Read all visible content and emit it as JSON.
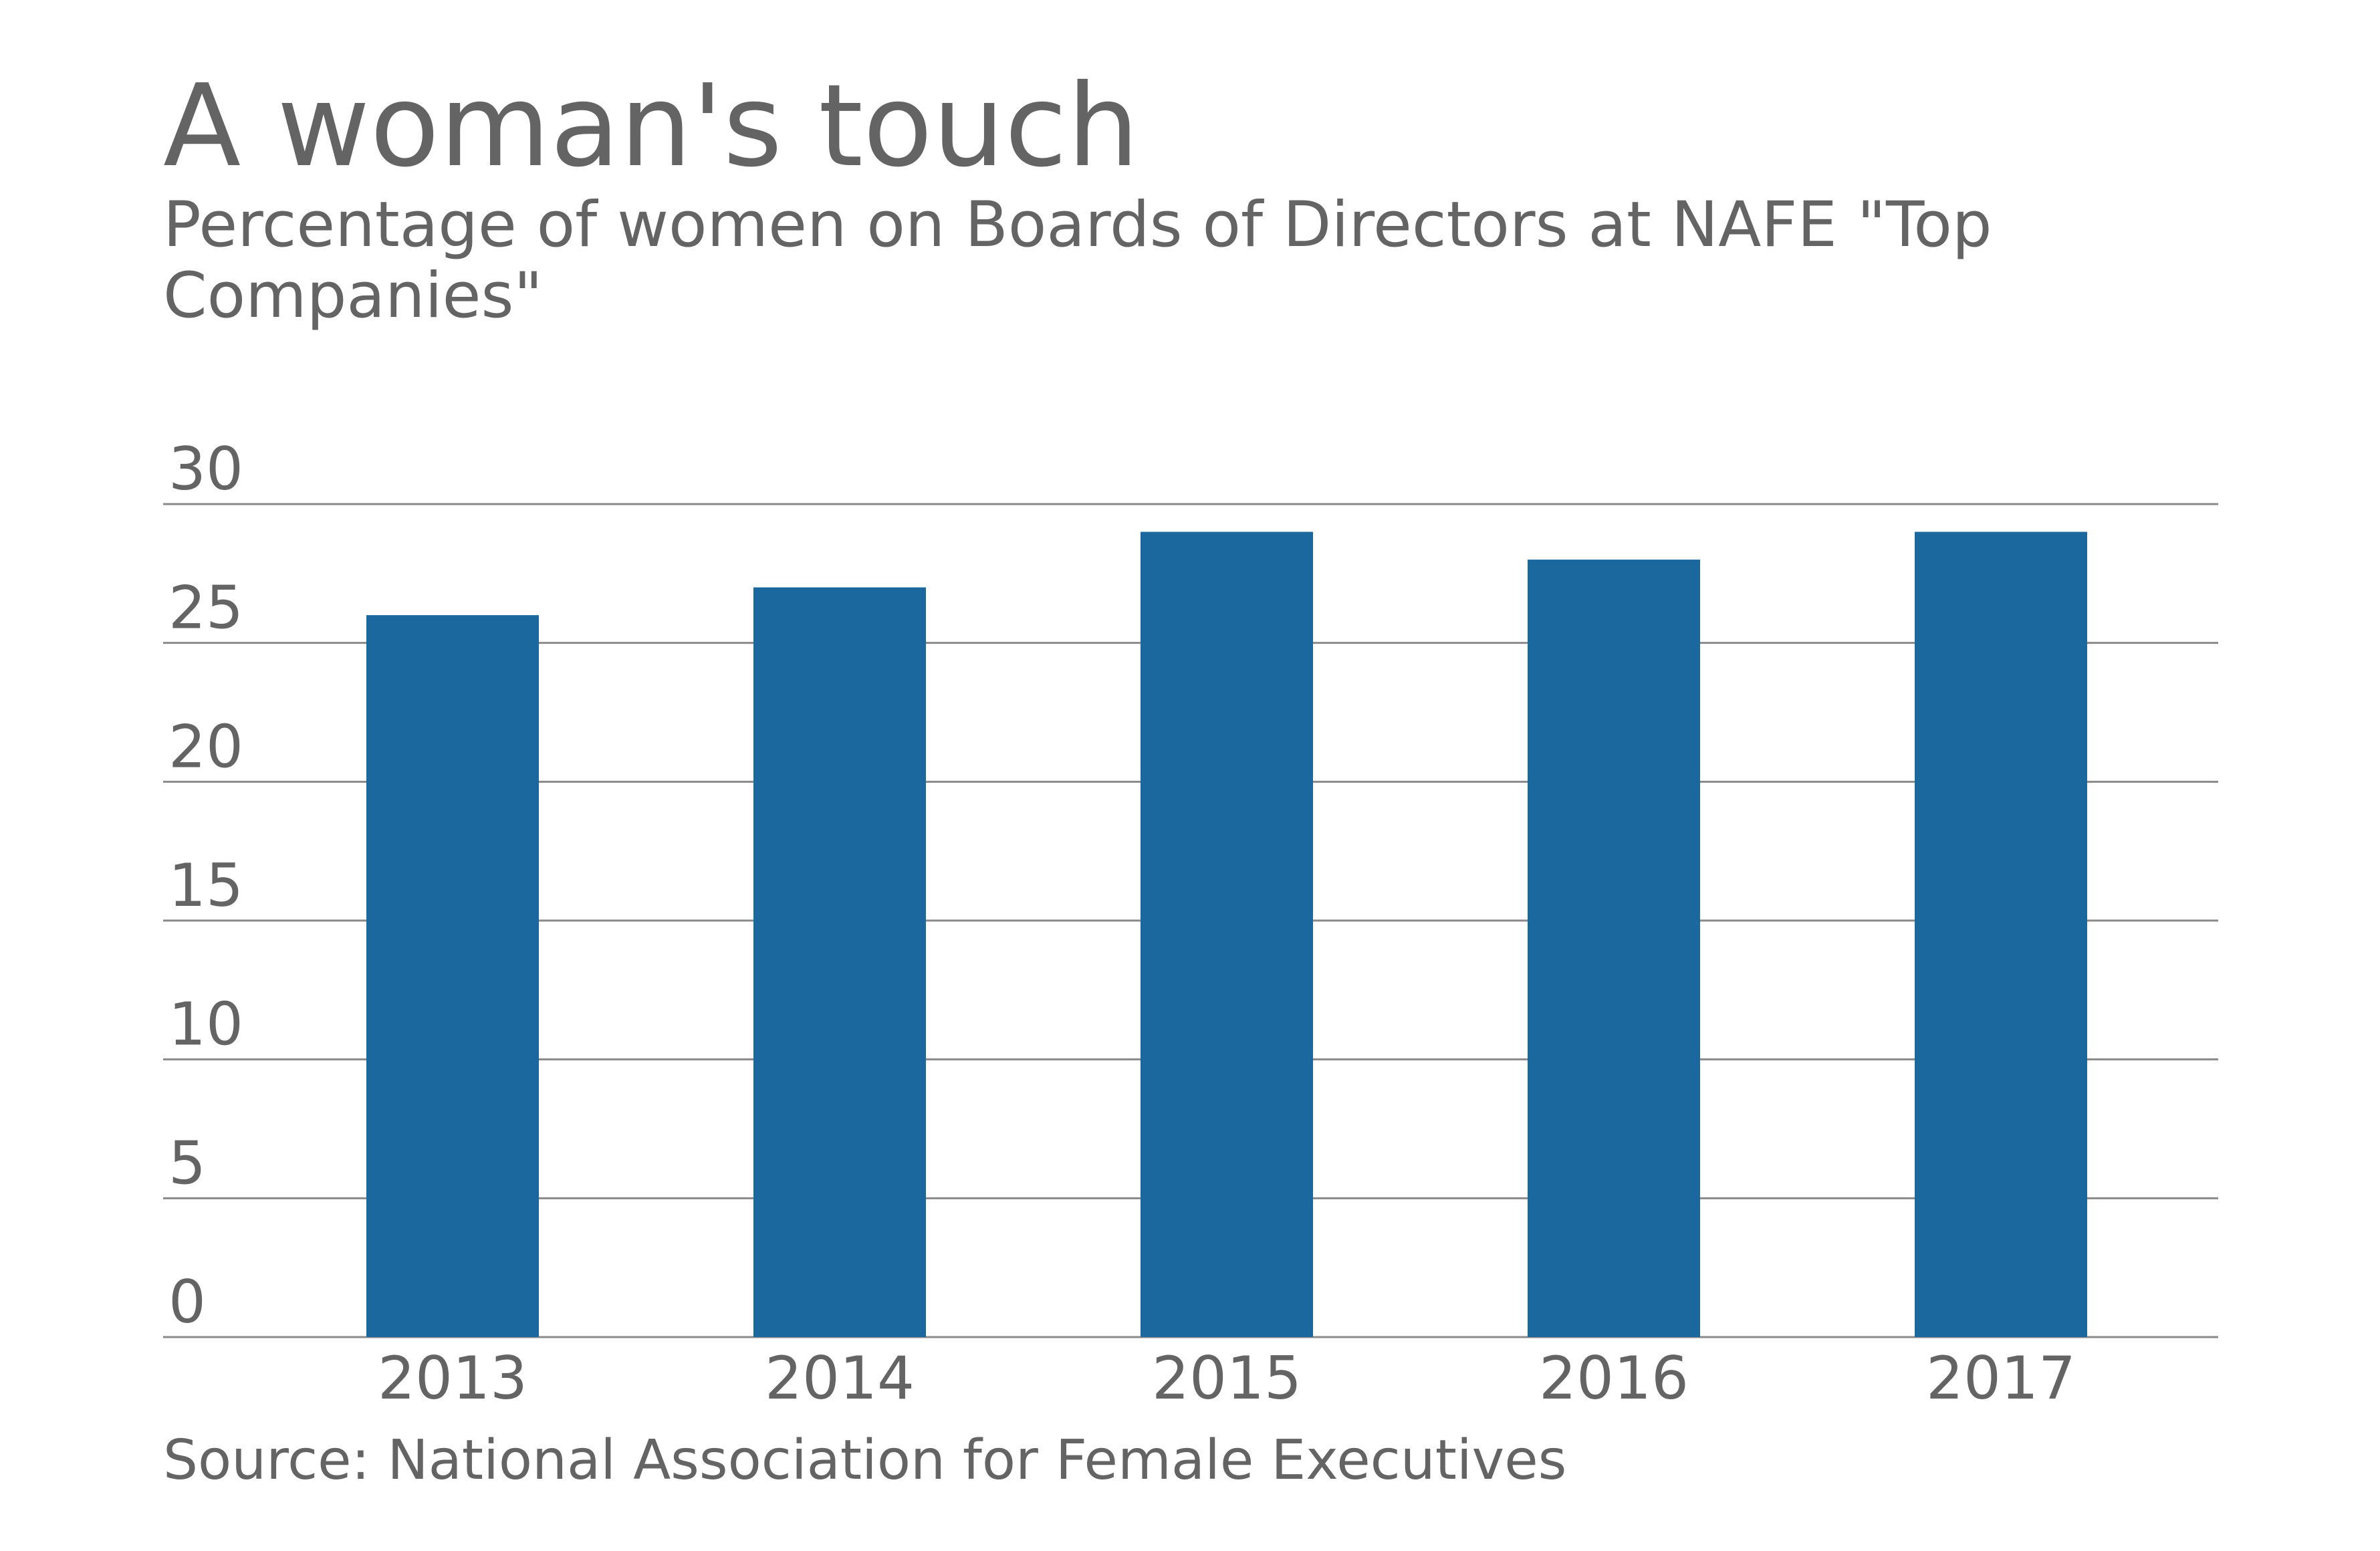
{
  "chart_data": {
    "type": "bar",
    "title": "A woman's touch",
    "subtitle": "Percentage of women on Boards of Directors at NAFE \"Top Companies\"",
    "source": "Source: National Association for Female Executives",
    "categories": [
      "2013",
      "2014",
      "2015",
      "2016",
      "2017"
    ],
    "values": [
      26,
      27,
      29,
      28,
      29
    ],
    "xlabel": "",
    "ylabel": "",
    "ylim": [
      0,
      30
    ],
    "yticks": [
      "0",
      "5",
      "10",
      "15",
      "20",
      "25",
      "30"
    ],
    "grid": true,
    "legend": "none",
    "colors": {
      "bar": "#1a689e",
      "gridline": "#8a8a8a",
      "text": "#646464"
    }
  }
}
